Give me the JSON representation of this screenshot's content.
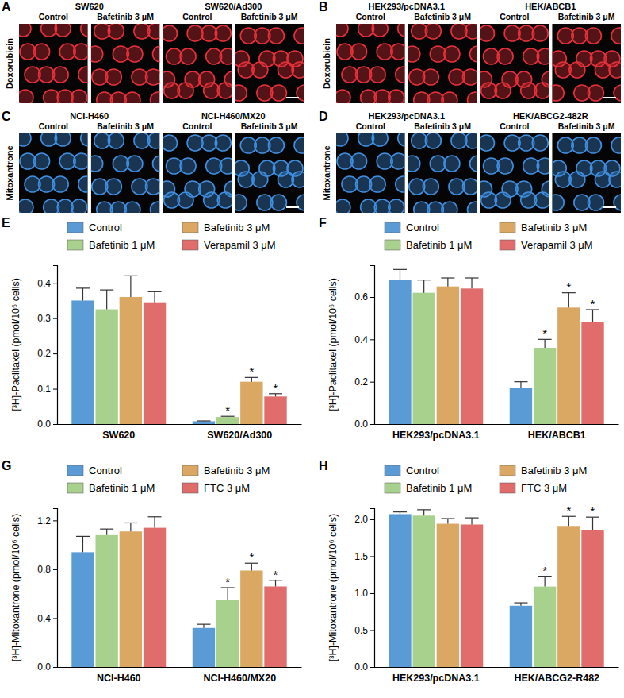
{
  "image_panels": [
    {
      "panel_label": "A",
      "stain": "Doxorubicin",
      "color": "#e8303a",
      "groups": [
        {
          "title": "SW620",
          "conditions": [
            "Control",
            "Bafetinib 3 μM"
          ]
        },
        {
          "title": "SW620/Ad300",
          "conditions": [
            "Control",
            "Bafetinib 3 μM"
          ]
        }
      ]
    },
    {
      "panel_label": "B",
      "stain": "Doxorubicin",
      "color": "#e8303a",
      "groups": [
        {
          "title": "HEK293/pcDNA3.1",
          "conditions": [
            "Control",
            "Bafetinib 3 μM"
          ]
        },
        {
          "title": "HEK/ABCB1",
          "conditions": [
            "Control",
            "Bafetinib 3 μM"
          ]
        }
      ]
    },
    {
      "panel_label": "C",
      "stain": "Mitoxantrone",
      "color": "#3f8ee0",
      "groups": [
        {
          "title": "NCI-H460",
          "conditions": [
            "Control",
            "Bafetinib 3 μM"
          ]
        },
        {
          "title": "NCI-H460/MX20",
          "conditions": [
            "Control",
            "Bafetinib 3 μM"
          ]
        }
      ]
    },
    {
      "panel_label": "D",
      "stain": "Mitoxantrone",
      "color": "#3f8ee0",
      "groups": [
        {
          "title": "HEK293/pcDNA3.1",
          "conditions": [
            "Control",
            "Bafetinib 3 μM"
          ]
        },
        {
          "title": "HEK/ABCG2-482R",
          "conditions": [
            "Control",
            "Bafetinib 3 μM"
          ]
        }
      ]
    }
  ],
  "chart_data": [
    {
      "panel_label": "E",
      "type": "bar",
      "y_label": "[³H]-Paclitaxel (pmol/10⁶ cells)",
      "categories": [
        "SW620",
        "SW620/Ad300"
      ],
      "series": [
        {
          "name": "Control",
          "color": "#5b9bd5",
          "values": [
            0.35,
            0.008
          ],
          "errors": [
            0.035,
            0.001
          ],
          "annotations": [
            null,
            null
          ]
        },
        {
          "name": "Bafetinib 1 μM",
          "color": "#a9d18e",
          "values": [
            0.325,
            0.02
          ],
          "errors": [
            0.055,
            0.002
          ],
          "annotations": [
            null,
            "*"
          ]
        },
        {
          "name": "Bafetinib 3 μM",
          "color": "#dba863",
          "values": [
            0.36,
            0.12
          ],
          "errors": [
            0.06,
            0.012
          ],
          "annotations": [
            null,
            "*"
          ]
        },
        {
          "name": "Verapamil 3 μM",
          "color": "#e06c6c",
          "values": [
            0.345,
            0.078
          ],
          "errors": [
            0.03,
            0.008
          ],
          "annotations": [
            null,
            "*"
          ]
        }
      ],
      "ylim": [
        0,
        0.45
      ],
      "yticks": [
        {
          "value": 0,
          "label": "0.0"
        },
        0.1,
        0.2,
        0.3,
        0.4
      ],
      "legend": "top"
    },
    {
      "panel_label": "F",
      "type": "bar",
      "y_label": "[³H]-Paclitaxel (pmol/10⁶ cells)",
      "categories": [
        "HEK293/pcDNA3.1",
        "HEK/ABCB1"
      ],
      "series": [
        {
          "name": "Control",
          "color": "#5b9bd5",
          "values": [
            0.68,
            0.17
          ],
          "errors": [
            0.05,
            0.03
          ],
          "annotations": [
            null,
            null
          ]
        },
        {
          "name": "Bafetinib 1 μM",
          "color": "#a9d18e",
          "values": [
            0.62,
            0.36
          ],
          "errors": [
            0.06,
            0.04
          ],
          "annotations": [
            null,
            "*"
          ]
        },
        {
          "name": "Bafetinib 3 μM",
          "color": "#dba863",
          "values": [
            0.65,
            0.55
          ],
          "errors": [
            0.04,
            0.07
          ],
          "annotations": [
            null,
            "*"
          ]
        },
        {
          "name": "Verapamil 3 μM",
          "color": "#e06c6c",
          "values": [
            0.64,
            0.48
          ],
          "errors": [
            0.05,
            0.06
          ],
          "annotations": [
            null,
            "*"
          ]
        }
      ],
      "ylim": [
        0,
        0.75
      ],
      "yticks": [
        {
          "value": 0,
          "label": "0.0"
        },
        0.2,
        0.4,
        0.6
      ],
      "legend": "top"
    },
    {
      "panel_label": "G",
      "type": "bar",
      "y_label": "[³H]-Mitoxantrone (pmol/10⁶ cells)",
      "categories": [
        "NCI-H460",
        "NCI-H460/MX20"
      ],
      "series": [
        {
          "name": "Control",
          "color": "#5b9bd5",
          "values": [
            0.94,
            0.32
          ],
          "errors": [
            0.13,
            0.03
          ],
          "annotations": [
            null,
            null
          ]
        },
        {
          "name": "Bafetinib 1 μM",
          "color": "#a9d18e",
          "values": [
            1.08,
            0.55
          ],
          "errors": [
            0.05,
            0.1
          ],
          "annotations": [
            null,
            "*"
          ]
        },
        {
          "name": "Bafetinib 3 μM",
          "color": "#dba863",
          "values": [
            1.11,
            0.79
          ],
          "errors": [
            0.07,
            0.06
          ],
          "annotations": [
            null,
            "*"
          ]
        },
        {
          "name": "FTC 3 μM",
          "color": "#e06c6c",
          "values": [
            1.14,
            0.66
          ],
          "errors": [
            0.09,
            0.05
          ],
          "annotations": [
            null,
            "*"
          ]
        }
      ],
      "ylim": [
        0,
        1.3
      ],
      "yticks": [
        {
          "value": 0,
          "label": "0.0"
        },
        0.4,
        0.8,
        1.2
      ],
      "legend": "top"
    },
    {
      "panel_label": "H",
      "type": "bar",
      "y_label": "[³H]-Mitoxantrone (pmol/10⁶ cells)",
      "categories": [
        "HEK293/pcDNA3.1",
        "HEK/ABCG2-R482"
      ],
      "series": [
        {
          "name": "Control",
          "color": "#5b9bd5",
          "values": [
            2.07,
            0.83
          ],
          "errors": [
            0.03,
            0.04
          ],
          "annotations": [
            null,
            null
          ]
        },
        {
          "name": "Bafetinib 1 μM",
          "color": "#a9d18e",
          "values": [
            2.05,
            1.09
          ],
          "errors": [
            0.08,
            0.14
          ],
          "annotations": [
            null,
            "*"
          ]
        },
        {
          "name": "Bafetinib 3 μM",
          "color": "#dba863",
          "values": [
            1.94,
            1.9
          ],
          "errors": [
            0.07,
            0.14
          ],
          "annotations": [
            null,
            "*"
          ]
        },
        {
          "name": "FTC 3 μM",
          "color": "#e06c6c",
          "values": [
            1.93,
            1.85
          ],
          "errors": [
            0.09,
            0.18
          ],
          "annotations": [
            null,
            "*"
          ]
        }
      ],
      "ylim": [
        0,
        2.15
      ],
      "yticks": [
        {
          "value": 0,
          "label": "0.0"
        },
        0.5,
        {
          "value": 1,
          "label": "1.0"
        },
        1.5,
        {
          "value": 2,
          "label": "2.0"
        }
      ],
      "legend": "top"
    }
  ]
}
